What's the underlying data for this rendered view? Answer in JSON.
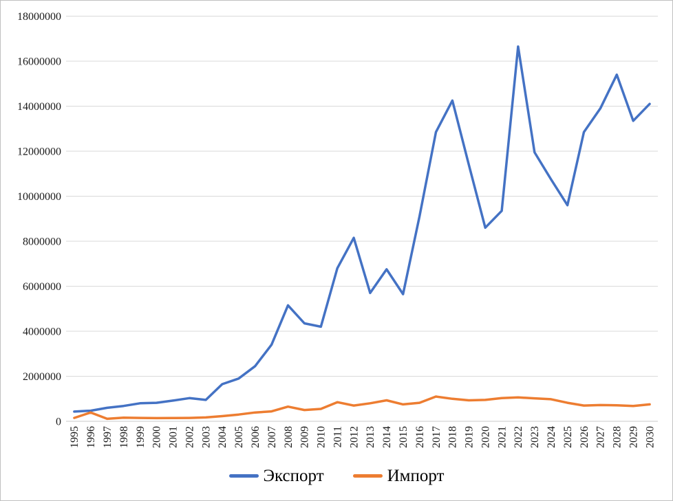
{
  "chart_data": {
    "type": "line",
    "title": "",
    "xlabel": "",
    "ylabel": "",
    "categories": [
      "1995",
      "1996",
      "1997",
      "1998",
      "1999",
      "2000",
      "2001",
      "2002",
      "2003",
      "2004",
      "2005",
      "2006",
      "2007",
      "2008",
      "2009",
      "2010",
      "2011",
      "2012",
      "2013",
      "2014",
      "2015",
      "2016",
      "2017",
      "2018",
      "2019",
      "2020",
      "2021",
      "2022",
      "2023",
      "2024",
      "2025",
      "2026",
      "2027",
      "2028",
      "2029",
      "2030"
    ],
    "series": [
      {
        "name": "Экспорт",
        "key": "export",
        "color": "#4472C4",
        "values": [
          430000,
          470000,
          600000,
          680000,
          800000,
          820000,
          920000,
          1030000,
          950000,
          1650000,
          1900000,
          2450000,
          3400000,
          5150000,
          4350000,
          4200000,
          6800000,
          8150000,
          5700000,
          6750000,
          5650000,
          9100000,
          12850000,
          14250000,
          11400000,
          8600000,
          9350000,
          16650000,
          11950000,
          10750000,
          9600000,
          12850000,
          13900000,
          15400000,
          13350000,
          14100000
        ]
      },
      {
        "name": "Импорт",
        "key": "import",
        "color": "#ED7D31",
        "values": [
          150000,
          390000,
          110000,
          160000,
          150000,
          140000,
          145000,
          150000,
          170000,
          230000,
          300000,
          390000,
          440000,
          650000,
          500000,
          550000,
          850000,
          700000,
          800000,
          930000,
          750000,
          820000,
          1100000,
          1000000,
          930000,
          950000,
          1030000,
          1060000,
          1020000,
          980000,
          820000,
          700000,
          720000,
          710000,
          680000,
          750000
        ]
      }
    ],
    "ylim": [
      0,
      18000000
    ],
    "y_tick_step": 2000000,
    "y_tick_labels": [
      "0",
      "2000000",
      "4000000",
      "6000000",
      "8000000",
      "10000000",
      "12000000",
      "14000000",
      "16000000",
      "18000000"
    ],
    "grid": true,
    "gridline_color": "#D9D9D9",
    "axis_line_color": "#C8C8C8",
    "tick_label_color": "#1a1a1a",
    "legend_position": "bottom"
  }
}
